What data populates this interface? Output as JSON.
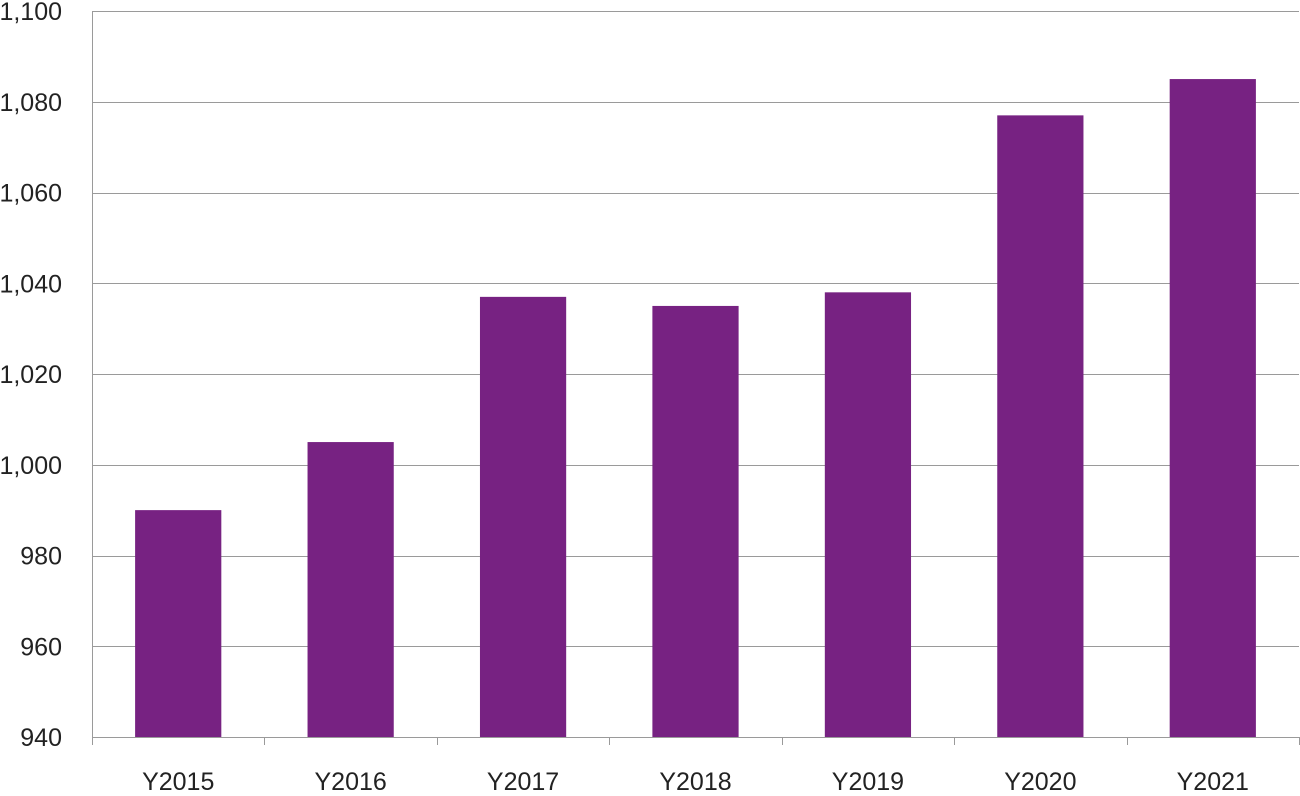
{
  "chart_data": {
    "type": "bar",
    "title": "",
    "xlabel": "",
    "ylabel": "",
    "categories": [
      "Y2015",
      "Y2016",
      "Y2017",
      "Y2018",
      "Y2019",
      "Y2020",
      "Y2021"
    ],
    "values": [
      990,
      1005,
      1037,
      1035,
      1038,
      1077,
      1085
    ],
    "ylim": [
      940,
      1100
    ],
    "yticks": [
      940,
      960,
      980,
      1000,
      1020,
      1040,
      1060,
      1080,
      1100
    ],
    "ytick_labels": [
      "940",
      "960",
      "980",
      "1,000",
      "1,020",
      "1,040",
      "1,060",
      "1,080",
      "1,100"
    ],
    "grid": true,
    "legend": "none",
    "colors": {
      "bar": "#772282",
      "grid": "#9a9a9a",
      "text": "#222222"
    }
  }
}
